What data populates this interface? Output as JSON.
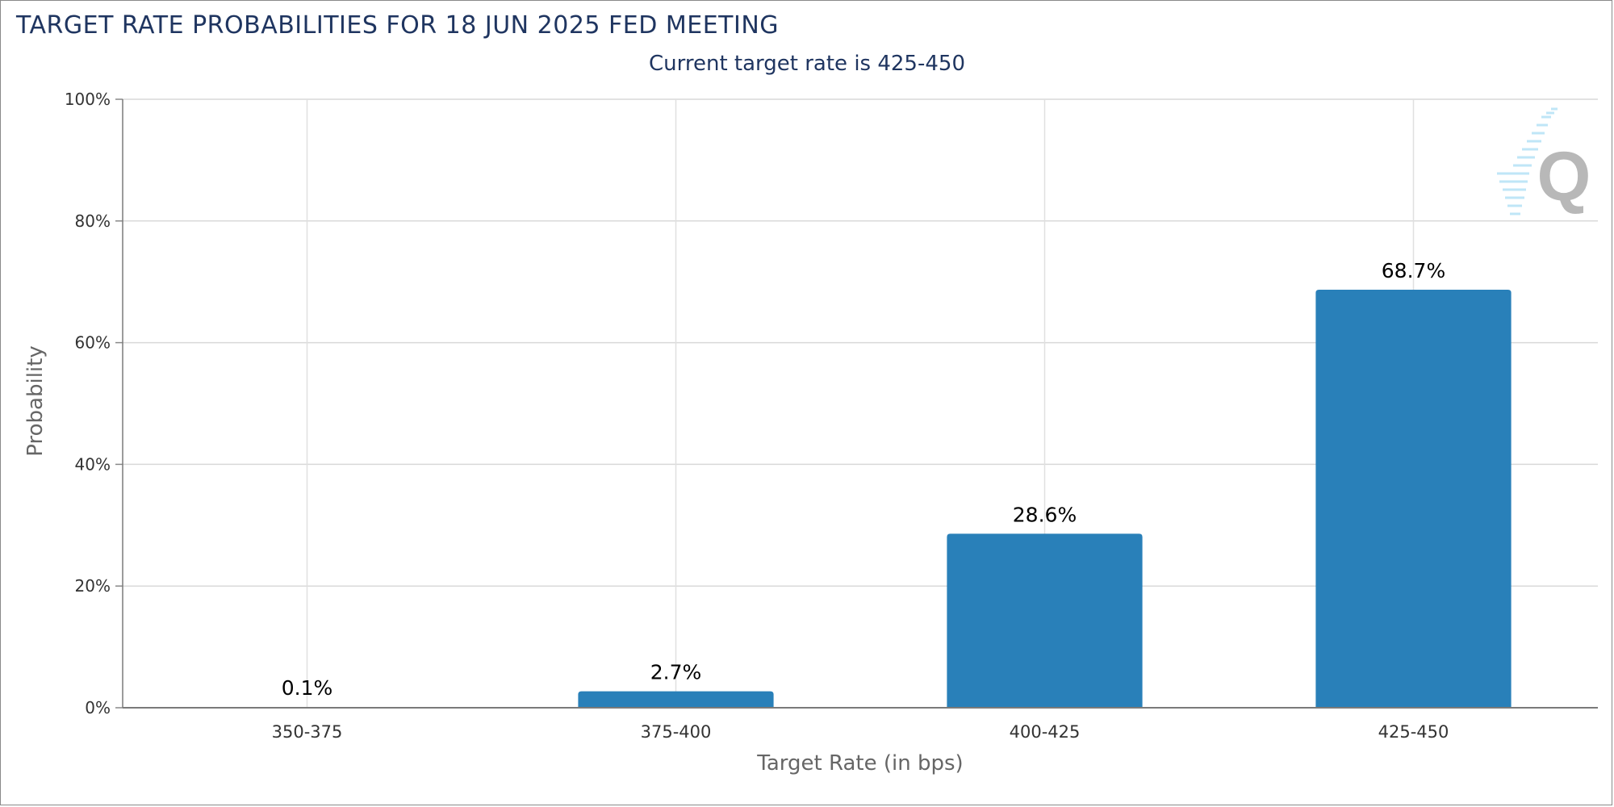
{
  "header": {
    "title": "TARGET RATE PROBABILITIES FOR 18 JUN 2025 FED MEETING",
    "subtitle": "Current target rate is 425-450"
  },
  "chart_data": {
    "type": "bar",
    "categories": [
      "350-375",
      "375-400",
      "400-425",
      "425-450"
    ],
    "values": [
      0.1,
      2.7,
      28.6,
      68.7
    ],
    "data_labels": [
      "0.1%",
      "2.7%",
      "28.6%",
      "68.7%"
    ],
    "xlabel": "Target Rate (in bps)",
    "ylabel": "Probability",
    "ylim": [
      0,
      100
    ],
    "yticks": [
      0,
      20,
      40,
      60,
      80,
      100
    ],
    "ytick_labels": [
      "0%",
      "20%",
      "40%",
      "60%",
      "80%",
      "100%"
    ],
    "grid": true,
    "bar_color": "#2980b9",
    "watermark_icon": "q-logo-icon"
  }
}
